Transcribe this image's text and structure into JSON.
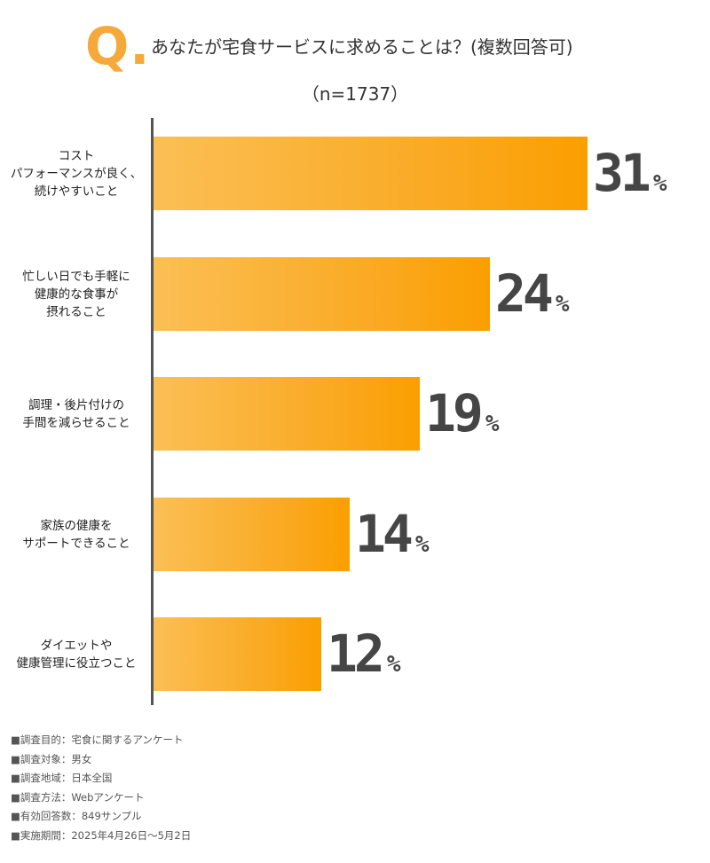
{
  "question": {
    "marker": "Q.",
    "title": "あなたが宅食サービスに求めることは？(複数回答可)",
    "sample": "（n=1737）"
  },
  "colors": {
    "accent": "#f5a93a",
    "bar_start": "#fbbf55",
    "bar_end": "#fa9f00",
    "value_text": "#454545"
  },
  "chart_data": {
    "type": "bar",
    "orientation": "horizontal",
    "title": "あなたが宅食サービスに求めることは？(複数回答可)",
    "unit": "%",
    "xlim": [
      0,
      31
    ],
    "categories": [
      [
        "コスト",
        "パフォーマンスが良く、",
        "続けやすいこと"
      ],
      [
        "忙しい日でも手軽に",
        "健康的な食事が",
        "摂れること"
      ],
      [
        "調理・後片付けの",
        "手間を減らせること"
      ],
      [
        "家族の健康を",
        "サポートできること"
      ],
      [
        "ダイエットや",
        "健康管理に役立つこと"
      ]
    ],
    "values": [
      31,
      24,
      19,
      14,
      12
    ],
    "value_unit_label": "%"
  },
  "notes": [
    "■調査目的：宅食に関するアンケート",
    "■調査対象：男女",
    "■調査地域：日本全国",
    "■調査方法：Webアンケート",
    "■有効回答数：849サンプル",
    "■実施期間：2025年4月26日〜5月2日"
  ]
}
